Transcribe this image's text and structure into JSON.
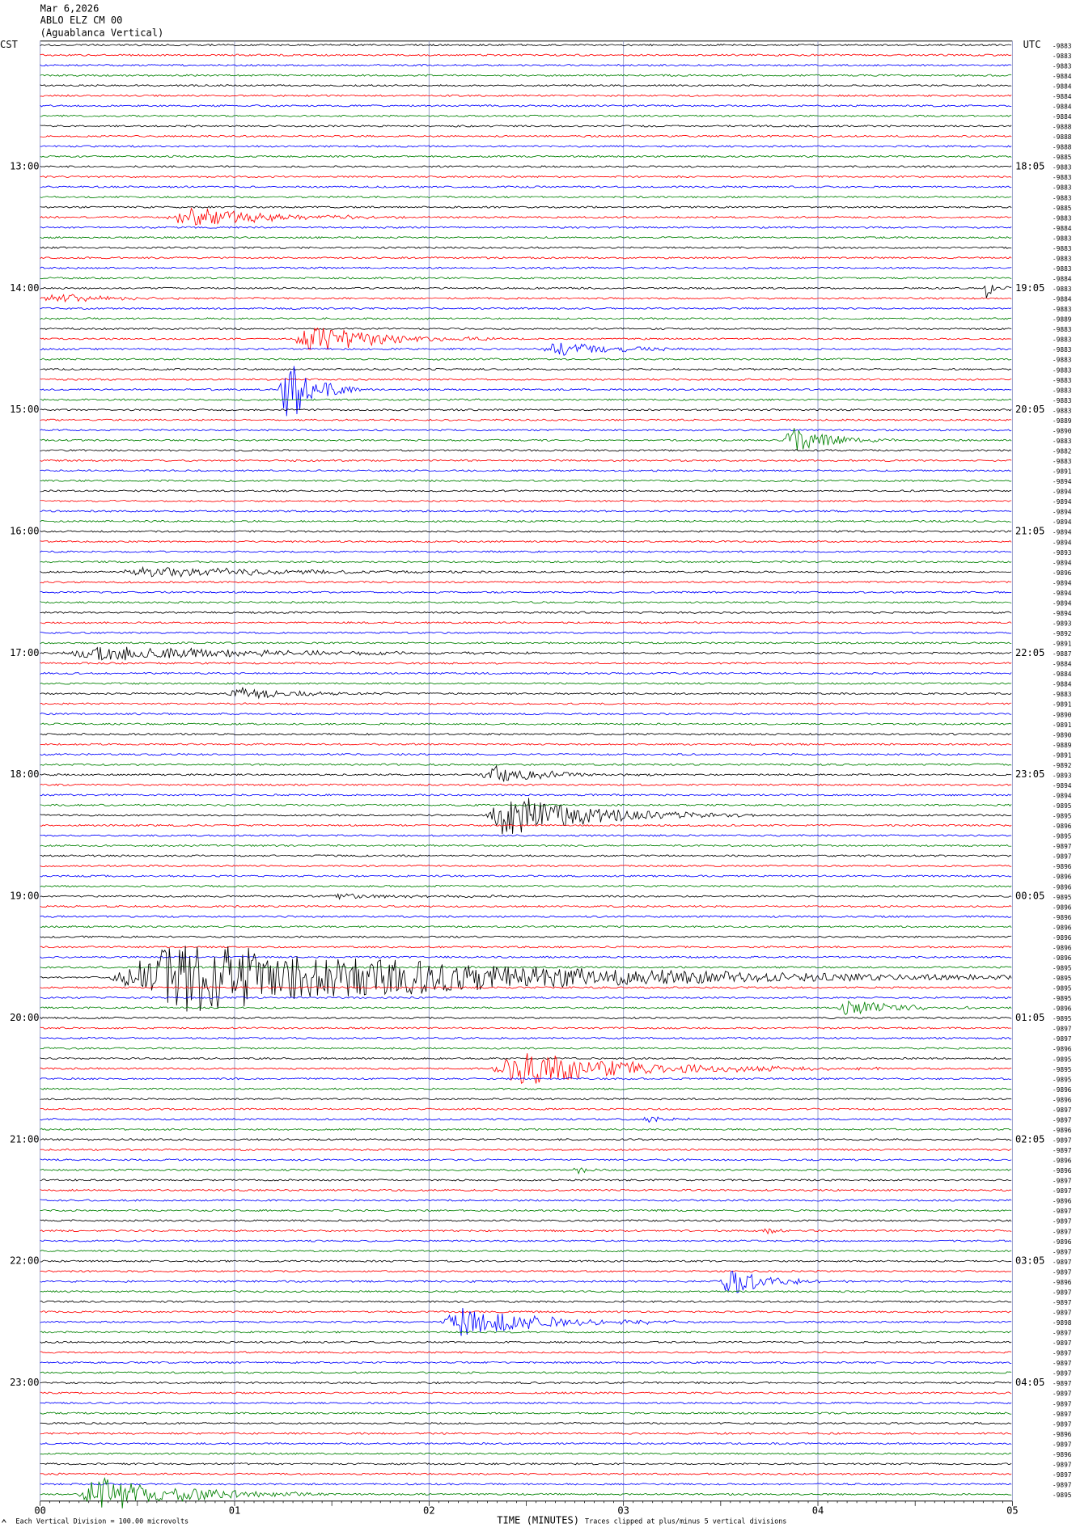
{
  "chart_data": {
    "type": "helicorder",
    "title_lines": [
      "Mar 6,2026",
      "ABLO ELZ CM 00",
      "(Aguablanca Vertical)"
    ],
    "left_zone": "CST",
    "right_zone": "UTC",
    "left_times": [
      "13:00",
      "14:00",
      "15:00",
      "16:00",
      "17:00",
      "18:00",
      "19:00",
      "20:00",
      "21:00",
      "22:00",
      "23:00"
    ],
    "right_times": [
      "18:05",
      "19:05",
      "20:05",
      "21:05",
      "22:05",
      "23:05",
      "00:05",
      "01:05",
      "02:05",
      "03:05",
      "04:05"
    ],
    "row_colors": [
      "#000000",
      "#ff0000",
      "#0000ff",
      "#008000"
    ],
    "offsets": [
      -9883,
      -9883,
      -9883,
      -9884,
      -9884,
      -9884,
      -9884,
      -9884,
      -9888,
      -9888,
      -9888,
      -9885,
      -9883,
      -9883,
      -9883,
      -9883,
      -9885,
      -9883,
      -9884,
      -9883,
      -9883,
      -9883,
      -9883,
      -9884,
      -9883,
      -9884,
      -9883,
      -9889,
      -9883,
      -9883,
      -9883,
      -9883,
      -9883,
      -9883,
      -9883,
      -9883,
      -9883,
      -9889,
      -9890,
      -9883,
      -9882,
      -9883,
      -9891,
      -9894,
      -9894,
      -9894,
      -9894,
      -9894,
      -9894,
      -9894,
      -9893,
      -9894,
      -9896,
      -9894,
      -9894,
      -9894,
      -9894,
      -9893,
      -9892,
      -9891,
      -9887,
      -9884,
      -9884,
      -9884,
      -9883,
      -9891,
      -9890,
      -9891,
      -9890,
      -9889,
      -9891,
      -9892,
      -9893,
      -9894,
      -9894,
      -9895,
      -9895,
      -9896,
      -9895,
      -9897,
      -9897,
      -9896,
      -9896,
      -9896,
      -9895,
      -9896,
      -9896,
      -9896,
      -9896,
      -9896,
      -9896,
      -9895,
      -9895,
      -9895,
      -9895,
      -9896,
      -9895,
      -9897,
      -9897,
      -9896,
      -9895,
      -9895,
      -9895,
      -9896,
      -9896,
      -9897,
      -9897,
      -9896,
      -9897,
      -9897,
      -9896,
      -9896,
      -9897,
      -9897,
      -9896,
      -9897,
      -9897,
      -9897,
      -9896,
      -9897,
      -9897,
      -9897,
      -9896,
      -9897,
      -9897,
      -9897,
      -9898,
      -9897,
      -9897,
      -9897,
      -9897,
      -9897,
      -9897,
      -9897,
      -9897,
      -9897,
      -9897,
      -9896,
      -9897,
      -9896,
      -9897,
      -9897,
      -9897,
      -9895
    ],
    "xlim": [
      0,
      5
    ],
    "xticks": [
      {
        "value": 0,
        "label": "00"
      },
      {
        "value": 1,
        "label": "01"
      },
      {
        "value": 2,
        "label": "02"
      },
      {
        "value": 3,
        "label": "03"
      },
      {
        "value": 4,
        "label": "04"
      },
      {
        "value": 5,
        "label": "05"
      }
    ],
    "xlabel": "TIME (MINUTES)",
    "scale_note": "Each Vertical Division =  100.00 microvolts",
    "clip_note": "Traces clipped at plus/minus 5 vertical divisions"
  }
}
